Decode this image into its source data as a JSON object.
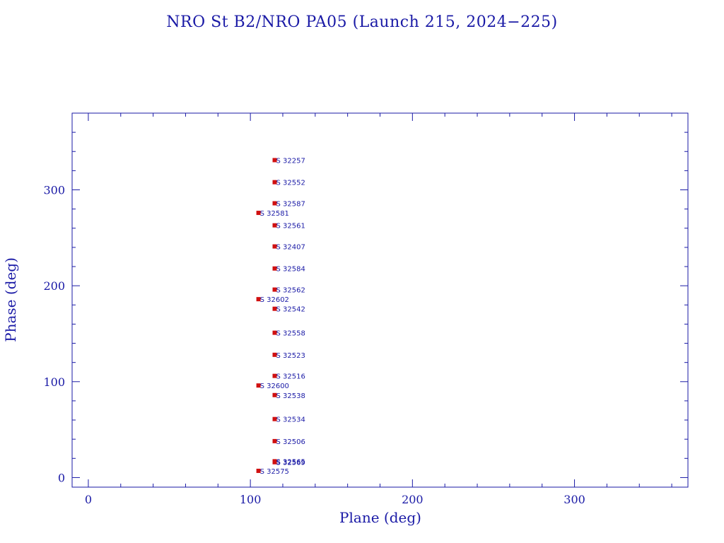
{
  "chart_data": {
    "type": "scatter",
    "title": "NRO St B2/NRO PA05 (Launch 215, 2024−225)",
    "xlabel": "Plane (deg)",
    "ylabel": "Phase (deg)",
    "xlim": [
      -10,
      370
    ],
    "ylim": [
      -10,
      380
    ],
    "xticks": [
      0,
      100,
      200,
      300
    ],
    "yticks": [
      0,
      100,
      200,
      300
    ],
    "grid": false,
    "colors": {
      "axis": "#1a1aa6",
      "marker": "#d01010",
      "label": "#1a1aa6"
    },
    "points": [
      {
        "label": "S 32257",
        "x": 115,
        "y": 331
      },
      {
        "label": "S 32552",
        "x": 115,
        "y": 308
      },
      {
        "label": "S 32587",
        "x": 115,
        "y": 286
      },
      {
        "label": "S 32581",
        "x": 105,
        "y": 276
      },
      {
        "label": "S 32561",
        "x": 115,
        "y": 263
      },
      {
        "label": "S 32407",
        "x": 115,
        "y": 241
      },
      {
        "label": "S 32584",
        "x": 115,
        "y": 218
      },
      {
        "label": "S 32562",
        "x": 115,
        "y": 196
      },
      {
        "label": "S 32602",
        "x": 105,
        "y": 186
      },
      {
        "label": "S 32542",
        "x": 115,
        "y": 176
      },
      {
        "label": "S 32558",
        "x": 115,
        "y": 151
      },
      {
        "label": "S 32523",
        "x": 115,
        "y": 128
      },
      {
        "label": "S 32516",
        "x": 115,
        "y": 106
      },
      {
        "label": "S 32600",
        "x": 105,
        "y": 96
      },
      {
        "label": "S 32538",
        "x": 115,
        "y": 86
      },
      {
        "label": "S 32534",
        "x": 115,
        "y": 61
      },
      {
        "label": "S 32506",
        "x": 115,
        "y": 38
      },
      {
        "label": "S 32565",
        "x": 115,
        "y": 17
      },
      {
        "label": "S 32569",
        "x": 115,
        "y": 16
      },
      {
        "label": "S 32575",
        "x": 105,
        "y": 7
      }
    ]
  }
}
